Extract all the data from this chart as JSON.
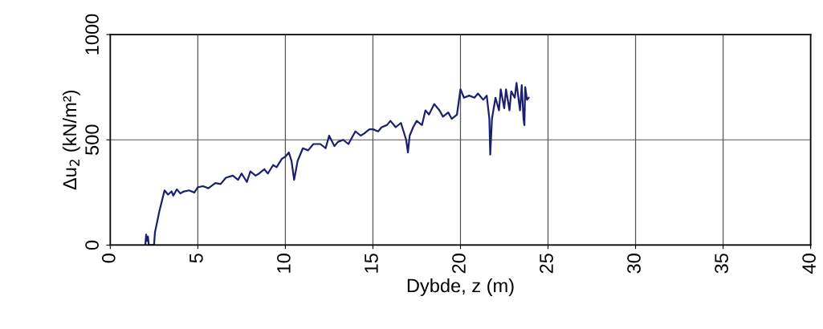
{
  "chart_data": {
    "type": "line",
    "xlabel": "Dybde, z (m)",
    "ylabel": "Δu$_{2}$ (kN/m²)",
    "xlim": [
      0,
      40
    ],
    "ylim": [
      0,
      1000
    ],
    "xticks": [
      0,
      5,
      10,
      15,
      20,
      25,
      30,
      35,
      40
    ],
    "yticks": [
      0,
      500,
      1000
    ],
    "grid": true,
    "marker": "none",
    "line_style": "solid",
    "series": [
      {
        "color": "#1a1f6e",
        "x": [
          2.0,
          2.05,
          2.1,
          2.15,
          2.2,
          2.5,
          2.55,
          2.8,
          3.1,
          3.3,
          3.5,
          3.6,
          3.8,
          4.0,
          4.2,
          4.5,
          4.8,
          5.0,
          5.3,
          5.6,
          6.0,
          6.3,
          6.6,
          7.0,
          7.3,
          7.5,
          7.8,
          8.0,
          8.3,
          8.5,
          8.8,
          9.0,
          9.3,
          9.5,
          9.8,
          10.0,
          10.2,
          10.35,
          10.5,
          10.7,
          11.0,
          11.3,
          11.6,
          12.0,
          12.3,
          12.5,
          12.8,
          13.0,
          13.3,
          13.6,
          14.0,
          14.3,
          14.5,
          14.8,
          15.0,
          15.3,
          15.5,
          15.8,
          16.0,
          16.3,
          16.6,
          16.9,
          17.0,
          17.1,
          17.3,
          17.5,
          17.8,
          18.0,
          18.2,
          18.5,
          18.8,
          19.0,
          19.3,
          19.5,
          19.8,
          20.0,
          20.2,
          20.5,
          20.8,
          21.0,
          21.3,
          21.5,
          21.65,
          21.7,
          21.8,
          22.0,
          22.2,
          22.3,
          22.5,
          22.6,
          22.8,
          22.9,
          23.1,
          23.2,
          23.4,
          23.5,
          23.6,
          23.65,
          23.7,
          23.8,
          23.9
        ],
        "values": [
          0,
          50,
          20,
          40,
          0,
          0,
          60,
          160,
          260,
          240,
          255,
          235,
          265,
          245,
          255,
          260,
          250,
          275,
          280,
          270,
          295,
          290,
          320,
          330,
          310,
          340,
          300,
          350,
          330,
          340,
          360,
          340,
          380,
          370,
          410,
          420,
          440,
          400,
          310,
          400,
          460,
          450,
          480,
          480,
          460,
          520,
          470,
          490,
          500,
          480,
          540,
          520,
          530,
          550,
          550,
          540,
          560,
          570,
          590,
          560,
          580,
          500,
          440,
          520,
          560,
          590,
          570,
          640,
          620,
          670,
          640,
          610,
          630,
          600,
          620,
          740,
          700,
          710,
          700,
          720,
          690,
          710,
          600,
          430,
          600,
          700,
          640,
          740,
          650,
          740,
          640,
          730,
          700,
          770,
          640,
          760,
          600,
          570,
          750,
          690,
          700
        ]
      }
    ]
  }
}
